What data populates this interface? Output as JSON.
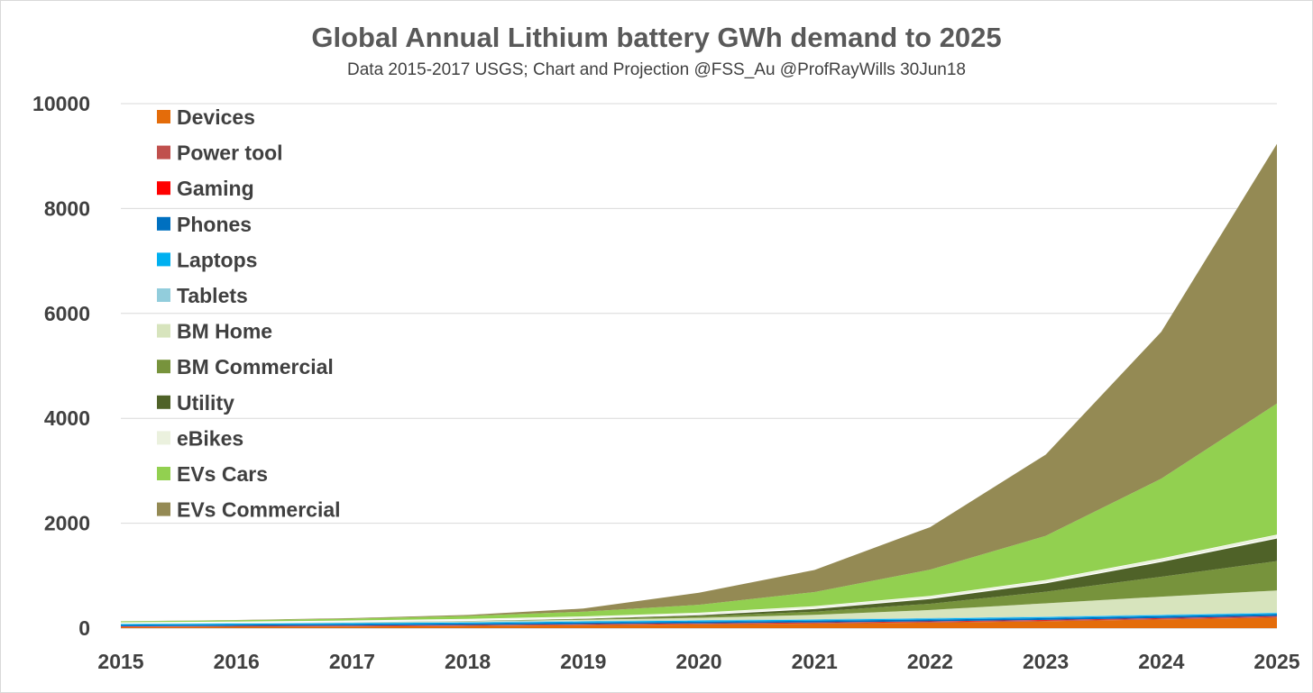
{
  "chart_data": {
    "type": "area",
    "stacked": true,
    "title": "Global Annual Lithium battery GWh demand to 2025",
    "subtitle": "Data 2015-2017 USGS; Chart and Projection @FSS_Au  @ProfRayWills 30Jun18",
    "xlabel": "",
    "ylabel": "",
    "x": [
      2015,
      2016,
      2017,
      2018,
      2019,
      2020,
      2021,
      2022,
      2023,
      2024,
      2025
    ],
    "ylim": [
      0,
      10000
    ],
    "yticks": [
      0,
      2000,
      4000,
      6000,
      8000,
      10000
    ],
    "grid": true,
    "legend_position": "top-left",
    "series": [
      {
        "name": "Devices",
        "color": "#e46c0a",
        "values": [
          20,
          25,
          30,
          40,
          55,
          70,
          85,
          105,
          130,
          165,
          200
        ]
      },
      {
        "name": "Power tool",
        "color": "#c0504d",
        "values": [
          8,
          9,
          10,
          11,
          12,
          13,
          14,
          15,
          16,
          17,
          18
        ]
      },
      {
        "name": "Gaming",
        "color": "#ff0000",
        "values": [
          6,
          6,
          7,
          7,
          8,
          8,
          9,
          9,
          10,
          10,
          11
        ]
      },
      {
        "name": "Phones",
        "color": "#0070c0",
        "values": [
          25,
          27,
          29,
          30,
          31,
          32,
          33,
          34,
          35,
          36,
          37
        ]
      },
      {
        "name": "Laptops",
        "color": "#00b0f0",
        "values": [
          20,
          20,
          20,
          20,
          20,
          20,
          20,
          20,
          20,
          20,
          20
        ]
      },
      {
        "name": "Tablets",
        "color": "#92cddc",
        "values": [
          12,
          12,
          12,
          12,
          12,
          12,
          12,
          12,
          12,
          12,
          12
        ]
      },
      {
        "name": "BM Home",
        "color": "#d7e4bd",
        "values": [
          1,
          2,
          5,
          10,
          20,
          40,
          80,
          150,
          250,
          340,
          420
        ]
      },
      {
        "name": "BM Commercial",
        "color": "#77933c",
        "values": [
          1,
          2,
          4,
          8,
          15,
          30,
          60,
          120,
          220,
          380,
          560
        ]
      },
      {
        "name": "Utility",
        "color": "#4f6228",
        "values": [
          1,
          2,
          4,
          8,
          15,
          30,
          60,
          100,
          170,
          290,
          440
        ]
      },
      {
        "name": "eBikes",
        "color": "#ebf1de",
        "values": [
          15,
          20,
          25,
          30,
          35,
          40,
          45,
          50,
          55,
          60,
          65
        ]
      },
      {
        "name": "EVs Cars",
        "color": "#92d050",
        "values": [
          20,
          25,
          35,
          55,
          90,
          150,
          270,
          500,
          840,
          1520,
          2500
        ]
      },
      {
        "name": "EVs Commercial",
        "color": "#948a54",
        "values": [
          1,
          4,
          10,
          20,
          60,
          230,
          420,
          810,
          1550,
          2800,
          4950
        ]
      }
    ]
  }
}
